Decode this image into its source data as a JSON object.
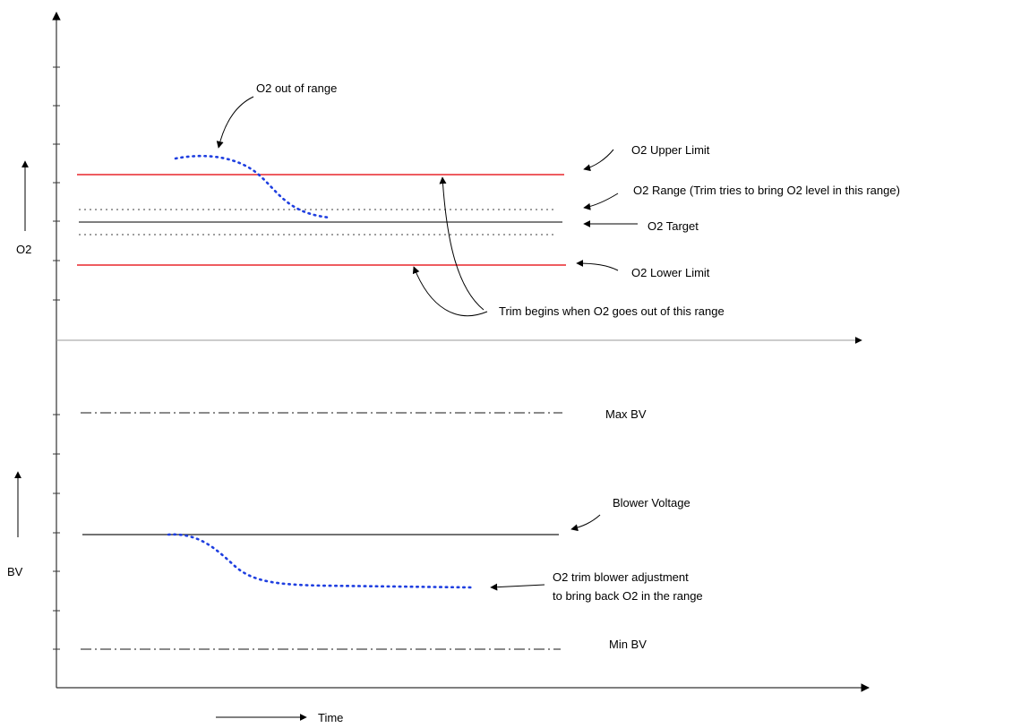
{
  "axes": {
    "y_upper_label": "O2",
    "y_lower_label": "BV",
    "x_label": "Time"
  },
  "annotations": {
    "o2_out_of_range": "O2 out of range",
    "o2_upper_limit": "O2 Upper Limit",
    "o2_range": "O2 Range (Trim tries to bring O2 level in this range)",
    "o2_target": "O2 Target",
    "o2_lower_limit": "O2 Lower Limit",
    "trim_begins": "Trim begins when O2 goes out of this range",
    "max_bv": "Max BV",
    "blower_voltage": "Blower Voltage",
    "trim_adjustment_line1": "O2 trim blower adjustment",
    "trim_adjustment_line2": "to bring back O2 in the range",
    "min_bv": "Min BV"
  },
  "colors": {
    "limit_line": "#e8262b",
    "trim_curve": "#1f3fe0",
    "axis": "#333333",
    "reference_line": "#555555"
  }
}
